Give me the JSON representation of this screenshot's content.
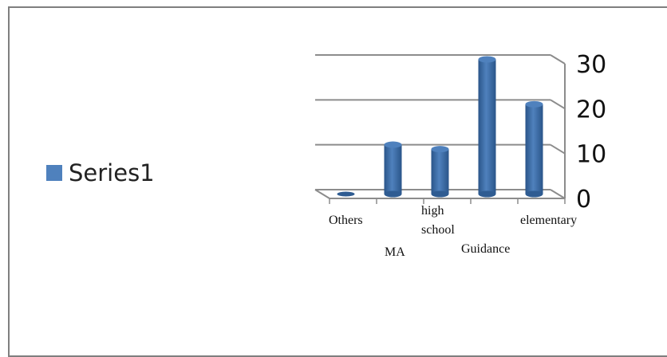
{
  "chart_data": {
    "type": "bar",
    "categories": [
      "Others",
      "MA",
      "high school",
      "Guidance",
      "elementary"
    ],
    "series": [
      {
        "name": "Series1",
        "values": [
          0,
          11,
          10,
          30,
          20
        ]
      }
    ],
    "ylim": [
      0,
      30
    ],
    "yticks": [
      0,
      10,
      20,
      30
    ],
    "grid": true,
    "legend_position": "left",
    "colors": {
      "bar": "#4f81bd",
      "bar_dark": "#2f5c92",
      "grid": "#8c8c8c"
    }
  }
}
